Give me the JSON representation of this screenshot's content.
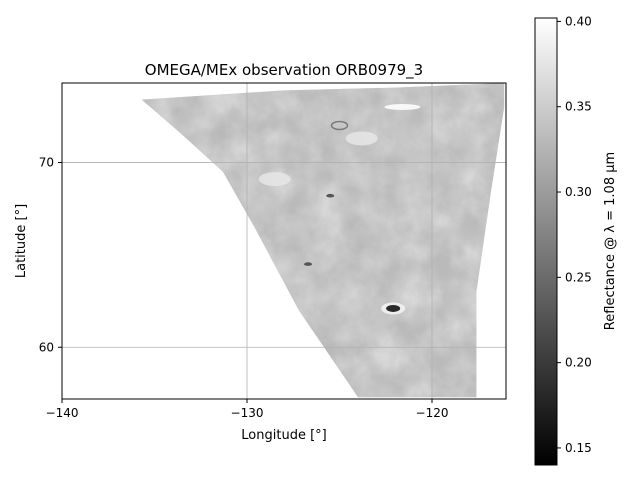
{
  "chart_data": {
    "type": "heatmap",
    "title": "OMEGA/MEx observation ORB0979_3",
    "xlabel": "Longitude [°]",
    "ylabel": "Latitude [°]",
    "xlim": [
      -140,
      -116
    ],
    "ylim": [
      57.2,
      74.3
    ],
    "xticks": [
      -140,
      -130,
      -120
    ],
    "xtick_labels": [
      "−140",
      "−130",
      "−120"
    ],
    "yticks": [
      60,
      70
    ],
    "ytick_labels": [
      "60",
      "70"
    ],
    "grid": true,
    "colormap": "gray",
    "swath_outline_lonlat": [
      [
        -135.7,
        73.4
      ],
      [
        -128.0,
        73.9
      ],
      [
        -122.0,
        74.05
      ],
      [
        -116.1,
        74.3
      ],
      [
        -116.1,
        73.0
      ],
      [
        -116.8,
        68.5
      ],
      [
        -117.6,
        63.0
      ],
      [
        -117.6,
        57.3
      ],
      [
        -124.0,
        57.3
      ],
      [
        -127.2,
        62.0
      ],
      [
        -129.6,
        66.5
      ],
      [
        -131.3,
        69.5
      ],
      [
        -133.5,
        71.5
      ]
    ],
    "features_lonlat": [
      {
        "kind": "dark-crater",
        "lon": -122.1,
        "lat": 62.1
      },
      {
        "kind": "small-dark-spot",
        "lon": -126.7,
        "lat": 64.5
      },
      {
        "kind": "small-dark-spot",
        "lon": -125.5,
        "lat": 68.2
      },
      {
        "kind": "bright-patch",
        "lon": -128.5,
        "lat": 69.1
      },
      {
        "kind": "bright-patch",
        "lon": -123.8,
        "lat": 71.3
      },
      {
        "kind": "bright-streak",
        "lon": -121.6,
        "lat": 73.0
      },
      {
        "kind": "crater",
        "lon": -125.0,
        "lat": 72.0
      }
    ],
    "colorbar": {
      "label": "Reflectance @ λ = 1.08 µm",
      "range": [
        0.14,
        0.402
      ],
      "ticks": [
        0.15,
        0.2,
        0.25,
        0.3,
        0.35,
        0.4
      ],
      "tick_labels": [
        "0.15",
        "0.20",
        "0.25",
        "0.30",
        "0.35",
        "0.40"
      ]
    }
  }
}
